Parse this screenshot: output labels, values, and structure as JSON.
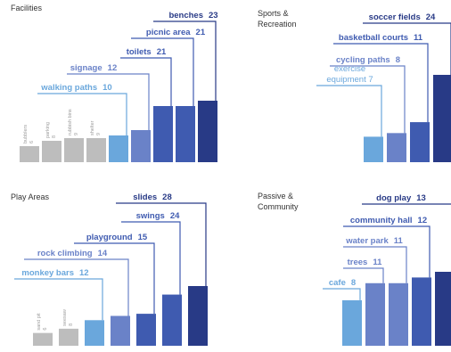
{
  "colors": {
    "grey": "#bdbdbd",
    "light_blue": "#6aa7dc",
    "periwinkle": "#6a82c8",
    "mid_blue": "#3f5bb0",
    "navy": "#283a86",
    "text": "#333333"
  },
  "chart_data": [
    {
      "type": "bar",
      "title": "Facilities",
      "categories": [
        "bubblers",
        "parking",
        "rubbish bins",
        "shelter",
        "walking paths",
        "signage",
        "toilets",
        "picnic area",
        "benches"
      ],
      "values": [
        6,
        8,
        9,
        9,
        10,
        12,
        21,
        21,
        23
      ],
      "value_labels": [
        "6",
        "8",
        "9",
        "9",
        "10",
        "12",
        "21",
        "21",
        "23"
      ],
      "colors": [
        "grey",
        "grey",
        "grey",
        "grey",
        "light_blue",
        "periwinkle",
        "mid_blue",
        "mid_blue",
        "navy"
      ],
      "callout": [
        false,
        false,
        false,
        false,
        true,
        true,
        true,
        true,
        true
      ],
      "ylim": [
        0,
        24
      ]
    },
    {
      "type": "bar",
      "title": "Sports & Recreation",
      "categories": [
        "exercise equipment",
        "cycling paths",
        "basketball courts",
        "soccer fields"
      ],
      "values": [
        7,
        8,
        11,
        24
      ],
      "value_labels": [
        "7",
        "8",
        "11",
        "24"
      ],
      "colors": [
        "light_blue",
        "periwinkle",
        "mid_blue",
        "navy"
      ],
      "callout": [
        true,
        true,
        true,
        true
      ],
      "ylim": [
        0,
        24
      ]
    },
    {
      "type": "bar",
      "title": "Play Areas",
      "categories": [
        "sand pit",
        "seesaw",
        "monkey bars",
        "rock climbing",
        "playground",
        "swings",
        "slides"
      ],
      "values": [
        6,
        8,
        12,
        14,
        15,
        24,
        28
      ],
      "value_labels": [
        "6",
        "8",
        "12",
        "14",
        "15",
        "24",
        "28"
      ],
      "colors": [
        "grey",
        "grey",
        "light_blue",
        "periwinkle",
        "mid_blue",
        "mid_blue",
        "navy"
      ],
      "callout": [
        false,
        false,
        true,
        true,
        true,
        true,
        true
      ],
      "ylim": [
        0,
        28
      ]
    },
    {
      "type": "bar",
      "title": "Passive & Community",
      "categories": [
        "cafe",
        "trees",
        "water park",
        "community hall",
        "dog play"
      ],
      "values": [
        8,
        11,
        11,
        12,
        13
      ],
      "value_labels": [
        "8",
        "11",
        "11",
        "12",
        "13"
      ],
      "colors": [
        "light_blue",
        "periwinkle",
        "periwinkle",
        "mid_blue",
        "navy"
      ],
      "callout": [
        true,
        true,
        true,
        true,
        true
      ],
      "ylim": [
        0,
        13
      ]
    }
  ]
}
